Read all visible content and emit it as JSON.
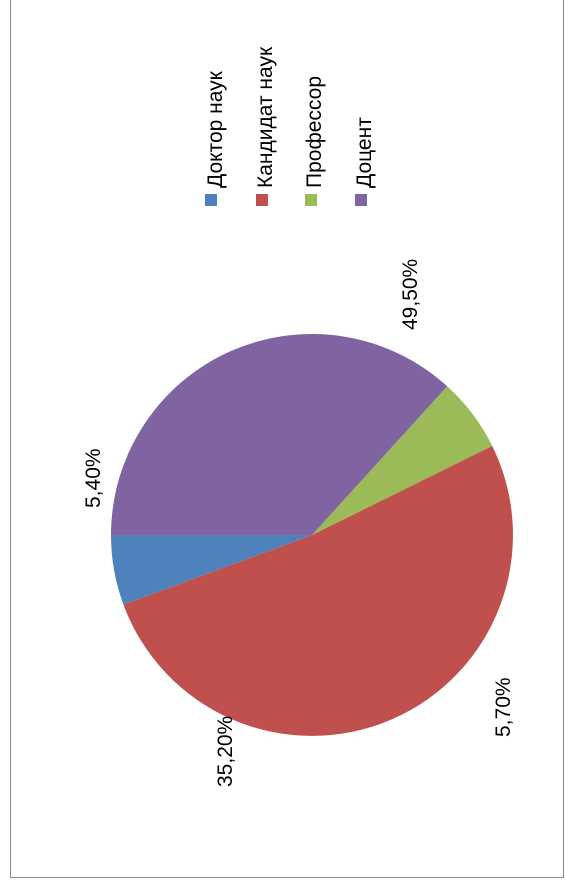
{
  "chart_data": {
    "type": "pie",
    "orientation": "rotated-90-counterclockwise",
    "categories": [
      "Доктор наук",
      "Кандидат наук",
      "Профессор",
      "Доцент"
    ],
    "values": [
      5.4,
      49.5,
      5.7,
      35.2
    ],
    "data_labels": [
      "5,40%",
      "49,50%",
      "5,70%",
      "35,20%"
    ],
    "colors": [
      "#4f81bd",
      "#c0504d",
      "#9bbb59",
      "#8064a2"
    ],
    "legend": {
      "position": "right",
      "entries": [
        "Доктор наук",
        "Кандидат наук",
        "Профессор",
        "Доцент"
      ]
    },
    "title": ""
  }
}
